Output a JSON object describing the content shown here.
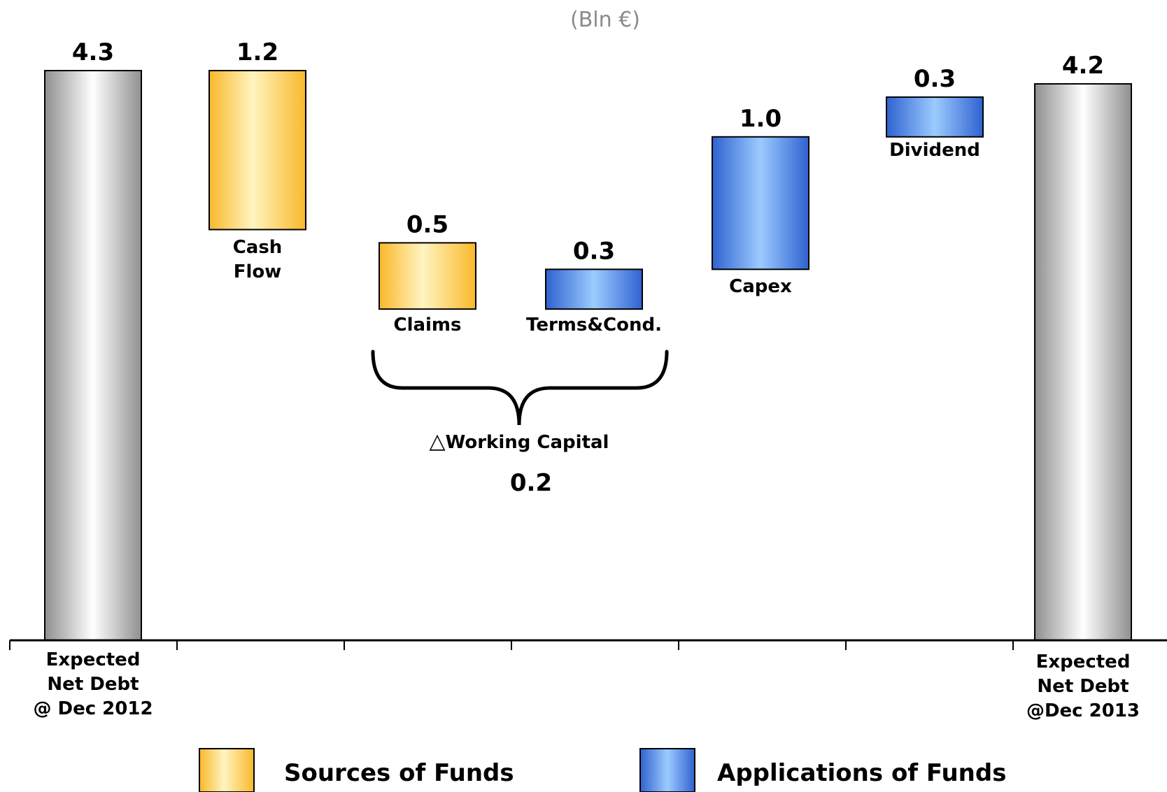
{
  "chart_data": {
    "type": "bar",
    "subtype": "waterfall",
    "unit_label": "(Bln €)",
    "bars": [
      {
        "label_lines": [
          "Expected",
          "Net Debt",
          "@ Dec 2012"
        ],
        "value": 4.3,
        "value_label": "4.3",
        "base": 0,
        "kind": "total"
      },
      {
        "label_lines": [
          "Cash",
          "Flow"
        ],
        "value": 1.2,
        "value_label": "1.2",
        "base": 3.1,
        "kind": "source"
      },
      {
        "label_lines": [
          "Claims"
        ],
        "value": 0.5,
        "value_label": "0.5",
        "base": 2.5,
        "kind": "source"
      },
      {
        "label_lines": [
          "Terms&Cond."
        ],
        "value": 0.3,
        "value_label": "0.3",
        "base": 2.5,
        "kind": "application"
      },
      {
        "label_lines": [
          "Capex"
        ],
        "value": 1.0,
        "value_label": "1.0",
        "base": 2.8,
        "kind": "application"
      },
      {
        "label_lines": [
          "Dividend"
        ],
        "value": 0.3,
        "value_label": "0.3",
        "base": 3.8,
        "kind": "application"
      },
      {
        "label_lines": [
          "Expected",
          "Net Debt",
          "@Dec 2013"
        ],
        "value": 4.2,
        "value_label": "4.2",
        "base": 0,
        "kind": "total"
      }
    ],
    "annotation": {
      "label": "Working Capital",
      "symbol": "△",
      "value": 0.2,
      "value_label": "0.2",
      "spans": [
        "Claims",
        "Terms&Cond."
      ]
    },
    "legend": [
      {
        "name": "Sources of Funds",
        "kind": "source"
      },
      {
        "name": "Applications of Funds",
        "kind": "application"
      }
    ],
    "legend_position": "bottom",
    "colors": {
      "source_dark": "#F9B82A",
      "source_light": "#FFF4C0",
      "application_dark": "#2F62D0",
      "application_light": "#9CCBFF",
      "total_dark": "#8F8F8F",
      "total_light": "#FFFFFF"
    },
    "ylim": [
      0,
      4.3
    ],
    "grid": false
  }
}
